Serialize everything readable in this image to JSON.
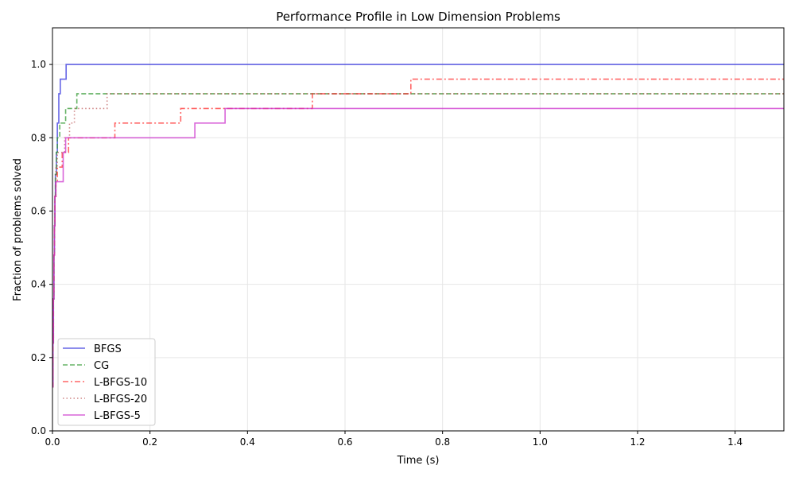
{
  "chart_data": {
    "type": "line",
    "title": "Performance Profile in Low Dimension Problems",
    "xlabel": "Time (s)",
    "ylabel": "Fraction of problems solved",
    "xlim": [
      0,
      1.5
    ],
    "ylim": [
      0,
      1.1
    ],
    "xticks": [
      0.0,
      0.2,
      0.4,
      0.6,
      0.8,
      1.0,
      1.2,
      1.4
    ],
    "xtick_labels": [
      "0.0",
      "0.2",
      "0.4",
      "0.6",
      "0.8",
      "1.0",
      "1.2",
      "1.4"
    ],
    "yticks": [
      0.0,
      0.2,
      0.4,
      0.6,
      0.8,
      1.0
    ],
    "ytick_labels": [
      "0.0",
      "0.2",
      "0.4",
      "0.6",
      "0.8",
      "1.0"
    ],
    "grid": true,
    "legend_position": "lower-left",
    "step": true,
    "series": [
      {
        "name": "BFGS",
        "color": "#3333dd",
        "dash": "solid",
        "points": [
          [
            0.0,
            0.12
          ],
          [
            0.001,
            0.24
          ],
          [
            0.002,
            0.36
          ],
          [
            0.003,
            0.48
          ],
          [
            0.004,
            0.56
          ],
          [
            0.005,
            0.64
          ],
          [
            0.006,
            0.7
          ],
          [
            0.008,
            0.76
          ],
          [
            0.01,
            0.84
          ],
          [
            0.013,
            0.92
          ],
          [
            0.016,
            0.96
          ],
          [
            0.028,
            1.0
          ],
          [
            1.5,
            1.0
          ]
        ]
      },
      {
        "name": "CG",
        "color": "#339933",
        "dash": "dashed",
        "points": [
          [
            0.0,
            0.12
          ],
          [
            0.001,
            0.24
          ],
          [
            0.002,
            0.36
          ],
          [
            0.003,
            0.48
          ],
          [
            0.004,
            0.56
          ],
          [
            0.005,
            0.64
          ],
          [
            0.006,
            0.7
          ],
          [
            0.008,
            0.76
          ],
          [
            0.01,
            0.8
          ],
          [
            0.015,
            0.84
          ],
          [
            0.027,
            0.88
          ],
          [
            0.05,
            0.92
          ],
          [
            1.5,
            0.92
          ]
        ]
      },
      {
        "name": "L-BFGS-10",
        "color": "#ff3333",
        "dash": "dashdot",
        "points": [
          [
            0.0,
            0.12
          ],
          [
            0.001,
            0.24
          ],
          [
            0.002,
            0.36
          ],
          [
            0.003,
            0.48
          ],
          [
            0.004,
            0.56
          ],
          [
            0.005,
            0.64
          ],
          [
            0.007,
            0.68
          ],
          [
            0.01,
            0.72
          ],
          [
            0.02,
            0.76
          ],
          [
            0.033,
            0.8
          ],
          [
            0.128,
            0.84
          ],
          [
            0.263,
            0.88
          ],
          [
            0.533,
            0.92
          ],
          [
            0.735,
            0.96
          ],
          [
            1.5,
            0.96
          ]
        ]
      },
      {
        "name": "L-BFGS-20",
        "color": "#c06060",
        "dash": "dotted",
        "points": [
          [
            0.0,
            0.12
          ],
          [
            0.001,
            0.24
          ],
          [
            0.002,
            0.36
          ],
          [
            0.003,
            0.48
          ],
          [
            0.004,
            0.56
          ],
          [
            0.005,
            0.64
          ],
          [
            0.007,
            0.72
          ],
          [
            0.01,
            0.76
          ],
          [
            0.025,
            0.8
          ],
          [
            0.035,
            0.84
          ],
          [
            0.045,
            0.88
          ],
          [
            0.112,
            0.92
          ],
          [
            1.5,
            0.92
          ]
        ]
      },
      {
        "name": "L-BFGS-5",
        "color": "#cc33cc",
        "dash": "solid",
        "points": [
          [
            0.0,
            0.12
          ],
          [
            0.001,
            0.24
          ],
          [
            0.002,
            0.36
          ],
          [
            0.003,
            0.48
          ],
          [
            0.004,
            0.56
          ],
          [
            0.005,
            0.64
          ],
          [
            0.007,
            0.68
          ],
          [
            0.022,
            0.76
          ],
          [
            0.027,
            0.8
          ],
          [
            0.292,
            0.84
          ],
          [
            0.354,
            0.88
          ],
          [
            1.5,
            0.88
          ]
        ]
      }
    ]
  }
}
